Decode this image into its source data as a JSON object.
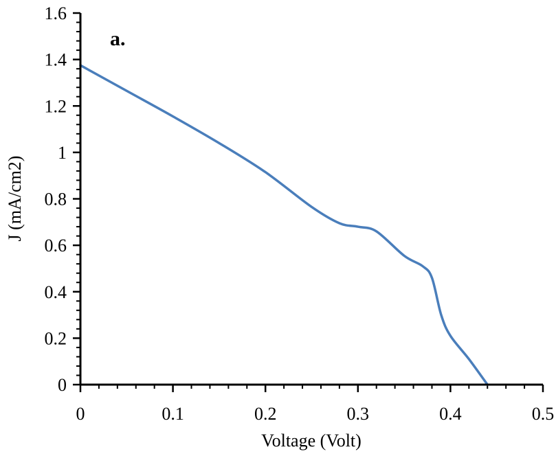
{
  "chart_data": {
    "type": "line",
    "panel_label": "a.",
    "xlabel": "Voltage (Volt)",
    "ylabel": "J (mA/cm2)",
    "xlim": [
      0,
      0.5
    ],
    "ylim": [
      0,
      1.6
    ],
    "x_ticks": [
      0,
      0.1,
      0.2,
      0.3,
      0.4,
      0.5
    ],
    "x_tick_labels": [
      "0",
      "0.1",
      "0.2",
      "0.3",
      "0.4",
      "0.5"
    ],
    "y_ticks": [
      0,
      0.2,
      0.4,
      0.6,
      0.8,
      1.0,
      1.2,
      1.4,
      1.6
    ],
    "y_tick_labels": [
      "0",
      "0.2",
      "0.4",
      "0.6",
      "0.8",
      "1",
      "1.2",
      "1.4",
      "1.6"
    ],
    "grid": false,
    "legend": "none",
    "series": [
      {
        "color": "#4a7ebb",
        "x": [
          0.0,
          0.05,
          0.1,
          0.15,
          0.2,
          0.25,
          0.28,
          0.3,
          0.32,
          0.35,
          0.37,
          0.38,
          0.39,
          0.4,
          0.42,
          0.44
        ],
        "y": [
          1.375,
          1.265,
          1.155,
          1.04,
          0.915,
          0.765,
          0.695,
          0.68,
          0.66,
          0.555,
          0.51,
          0.46,
          0.3,
          0.21,
          0.11,
          0.0
        ]
      }
    ]
  }
}
